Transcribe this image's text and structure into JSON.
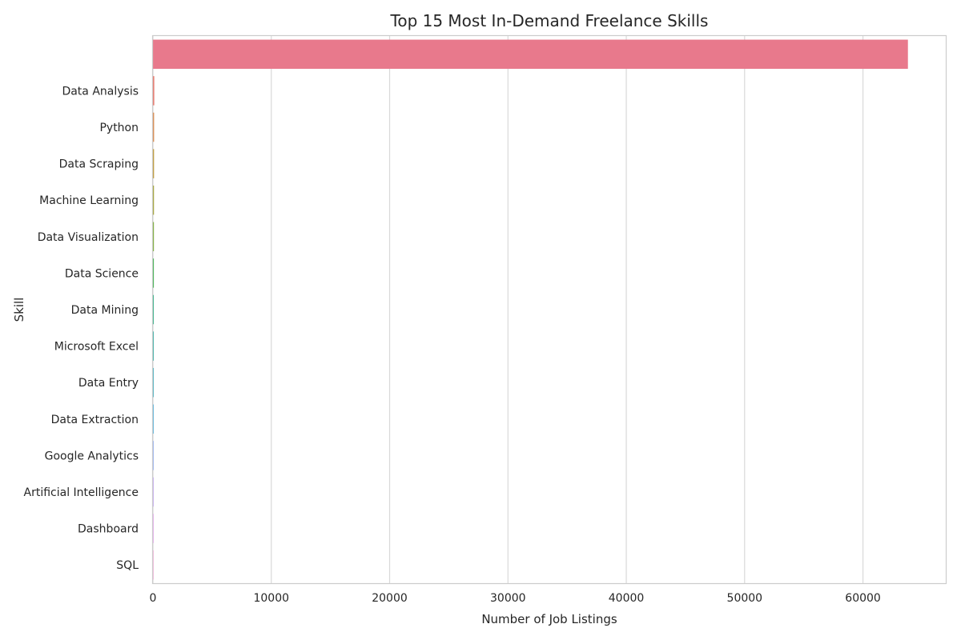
{
  "chart_data": {
    "type": "bar",
    "orientation": "horizontal",
    "title": "Top 15 Most In-Demand Freelance Skills",
    "xlabel": "Number of Job Listings",
    "ylabel": "Skill",
    "categories": [
      "",
      "Data Analysis",
      "Python",
      "Data Scraping",
      "Machine Learning",
      "Data Visualization",
      "Data Science",
      "Data Mining",
      "Microsoft Excel",
      "Data Entry",
      "Data Extraction",
      "Google Analytics",
      "Artificial Intelligence",
      "Dashboard",
      "SQL"
    ],
    "values": [
      63800,
      110,
      95,
      90,
      85,
      80,
      75,
      70,
      65,
      60,
      55,
      50,
      45,
      40,
      35
    ],
    "xlim": [
      0,
      67000
    ],
    "xticks": [
      0,
      10000,
      20000,
      30000,
      40000,
      50000,
      60000
    ],
    "grid": true,
    "palette": [
      "#e8798c",
      "#e67b6f",
      "#d98b4f",
      "#bf9a3a",
      "#a3a43a",
      "#7fae3c",
      "#45b454",
      "#3bb38b",
      "#3cb1a7",
      "#3dadbd",
      "#3ea8d6",
      "#7d9ef0",
      "#b08bf0",
      "#d97ce6",
      "#ec78bf"
    ]
  }
}
